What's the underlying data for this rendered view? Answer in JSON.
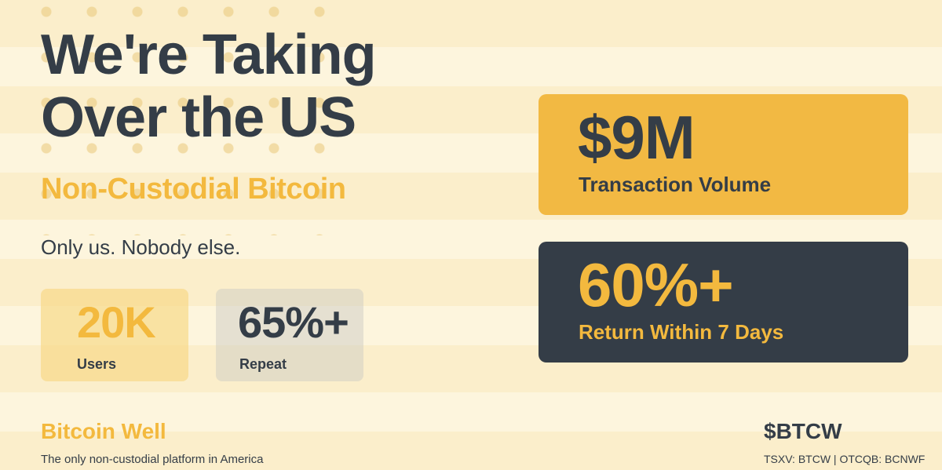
{
  "headline": {
    "line1": "We're Taking",
    "line2": "Over the US"
  },
  "subhead": "Non-Custodial Bitcoin",
  "tagline": "Only us. Nobody else.",
  "stats_small": [
    {
      "value": "20K",
      "label": "Users"
    },
    {
      "value": "65%+",
      "label": "Repeat"
    }
  ],
  "stats_large": [
    {
      "value": "$9M",
      "label": "Transaction Volume"
    },
    {
      "value": "60%+",
      "label": "Return Within 7 Days"
    }
  ],
  "footer": {
    "brand": "Bitcoin Well",
    "description": "The only non-custodial platform in America",
    "ticker": "$BTCW",
    "listing": "TSXV: BTCW | OTCQB: BCNWF"
  },
  "colors": {
    "accent": "#f3b93e",
    "dark": "#343d47",
    "background": "#fcf1cf"
  }
}
